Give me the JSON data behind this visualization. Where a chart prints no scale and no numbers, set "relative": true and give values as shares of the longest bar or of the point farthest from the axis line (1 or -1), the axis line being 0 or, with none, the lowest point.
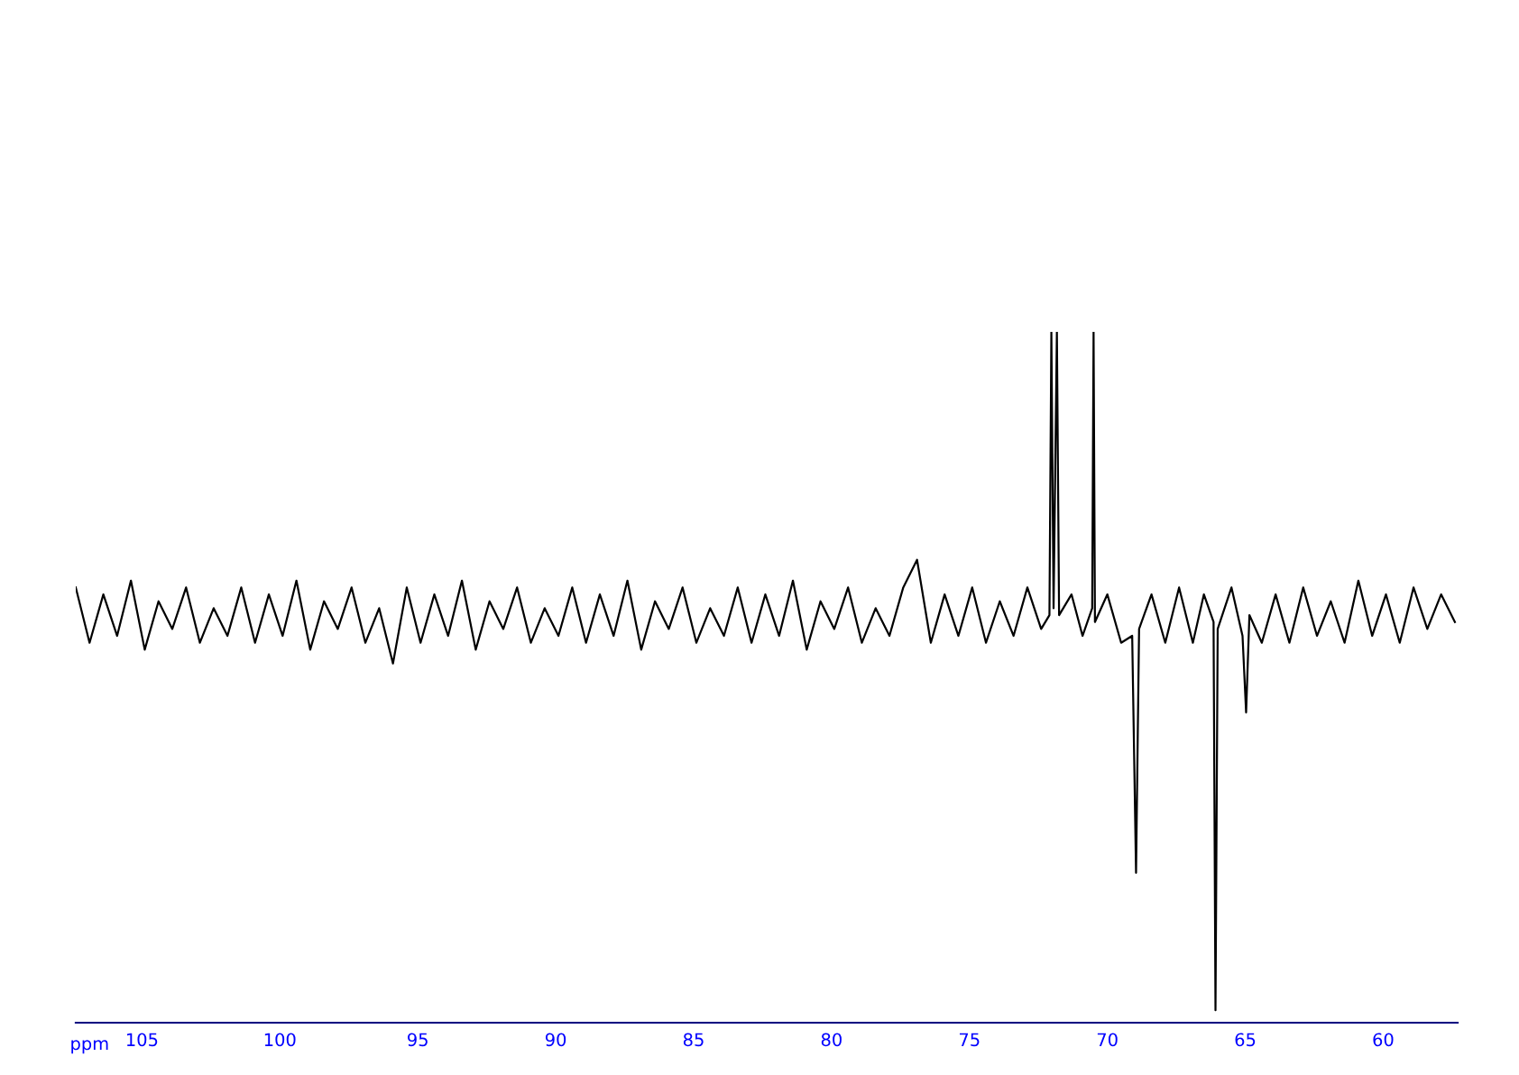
{
  "chart_data": {
    "type": "line",
    "relative": true,
    "xlabel": "ppm",
    "xlim": [
      107.4,
      57.3
    ],
    "xticks": [
      105,
      100,
      95,
      90,
      85,
      80,
      75,
      70,
      65,
      60
    ],
    "series": [
      {
        "color": "#000000",
        "x": [
          107.4,
          106.9,
          106.4,
          105.9,
          105.4,
          104.9,
          104.4,
          103.9,
          103.4,
          102.9,
          102.4,
          101.9,
          101.4,
          100.9,
          100.4,
          99.9,
          99.4,
          98.9,
          98.4,
          97.9,
          97.4,
          96.9,
          96.4,
          95.9,
          95.4,
          94.9,
          94.4,
          93.9,
          93.4,
          92.9,
          92.4,
          91.9,
          91.4,
          90.9,
          90.4,
          89.9,
          89.4,
          88.9,
          88.4,
          87.9,
          87.4,
          86.9,
          86.4,
          85.9,
          85.4,
          84.9,
          84.4,
          83.9,
          83.4,
          82.9,
          82.4,
          81.9,
          81.4,
          80.9,
          80.4,
          79.9,
          79.4,
          78.9,
          78.4,
          77.9,
          77.4,
          76.9,
          76.4,
          75.9,
          75.4,
          74.9,
          74.4,
          73.9,
          73.4,
          72.9,
          72.4,
          72.1,
          72.03,
          71.95,
          71.83,
          71.75,
          71.3,
          70.9,
          70.55,
          70.5,
          70.45,
          70.0,
          69.5,
          69.1,
          68.96,
          68.85,
          68.4,
          67.9,
          67.4,
          66.9,
          66.5,
          66.15,
          66.08,
          66.0,
          65.5,
          65.1,
          64.97,
          64.85,
          64.4,
          63.9,
          63.4,
          62.9,
          62.4,
          61.9,
          61.4,
          60.9,
          60.4,
          59.9,
          59.4,
          58.9,
          58.4,
          57.9,
          57.4
        ],
        "values": [
          0.63,
          0.55,
          0.62,
          0.56,
          0.64,
          0.54,
          0.61,
          0.57,
          0.63,
          0.55,
          0.6,
          0.56,
          0.63,
          0.55,
          0.62,
          0.56,
          0.64,
          0.54,
          0.61,
          0.57,
          0.63,
          0.55,
          0.6,
          0.52,
          0.63,
          0.55,
          0.62,
          0.56,
          0.64,
          0.54,
          0.61,
          0.57,
          0.63,
          0.55,
          0.6,
          0.56,
          0.63,
          0.55,
          0.62,
          0.56,
          0.64,
          0.54,
          0.61,
          0.57,
          0.63,
          0.55,
          0.6,
          0.56,
          0.63,
          0.55,
          0.62,
          0.56,
          0.64,
          0.54,
          0.61,
          0.57,
          0.63,
          0.55,
          0.6,
          0.56,
          0.63,
          0.67,
          0.55,
          0.62,
          0.56,
          0.63,
          0.55,
          0.61,
          0.56,
          0.63,
          0.57,
          0.59,
          1.0,
          0.6,
          1.0,
          0.59,
          0.62,
          0.56,
          0.6,
          1.0,
          0.58,
          0.62,
          0.55,
          0.56,
          0.217,
          0.57,
          0.62,
          0.55,
          0.63,
          0.55,
          0.62,
          0.58,
          0.018,
          0.57,
          0.63,
          0.56,
          0.449,
          0.59,
          0.55,
          0.62,
          0.55,
          0.63,
          0.56,
          0.61,
          0.55,
          0.64,
          0.56,
          0.62,
          0.55,
          0.63,
          0.57,
          0.62,
          0.58
        ]
      }
    ]
  }
}
